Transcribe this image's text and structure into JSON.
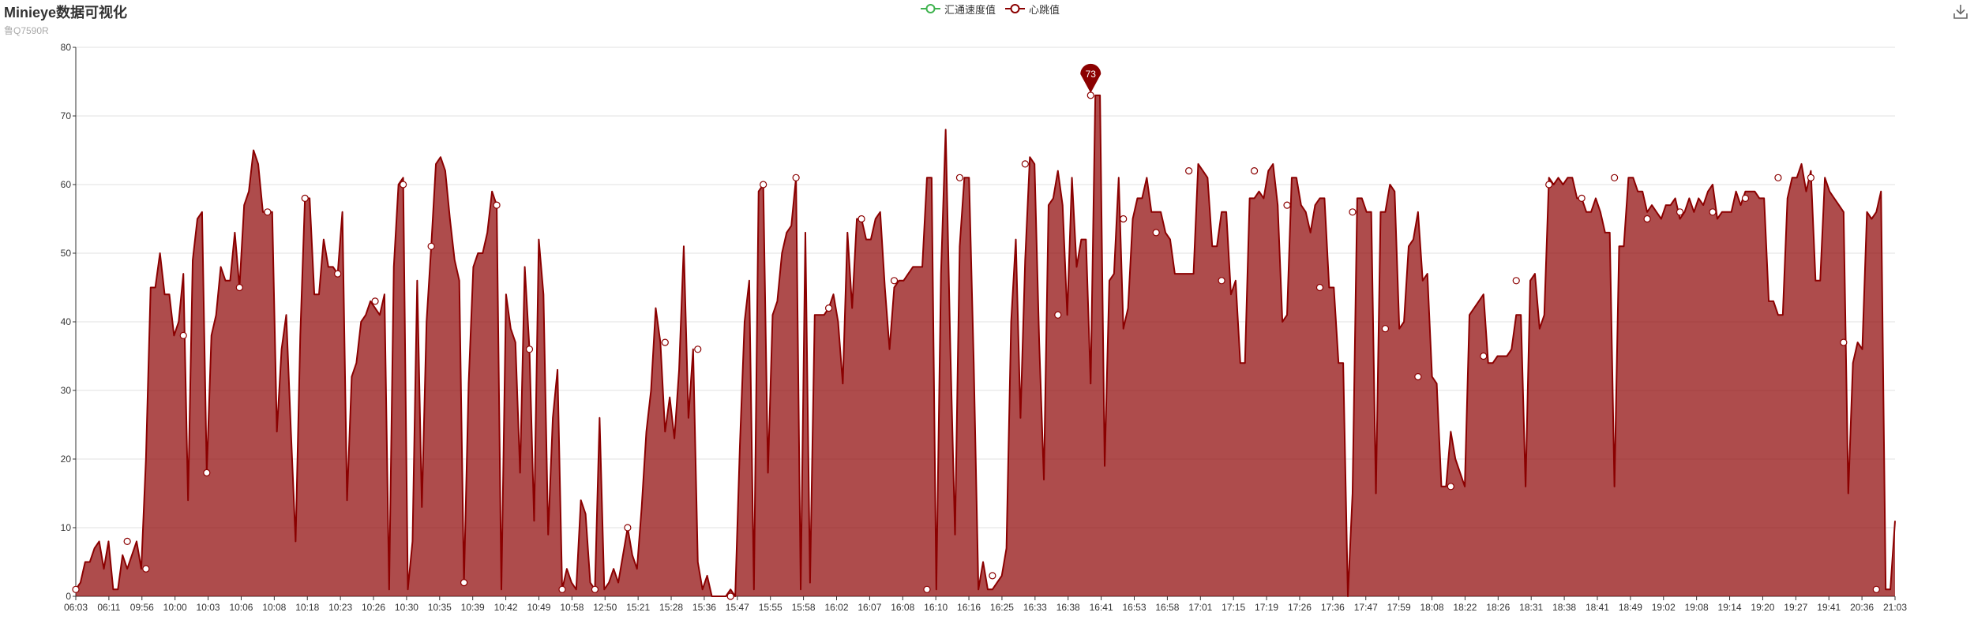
{
  "title": "Minieye数据可视化",
  "subtitle": "鲁Q7590R",
  "legend": {
    "series_a": "汇通速度值",
    "series_b": "心跳值"
  },
  "icons": {
    "download": "download-icon"
  },
  "colors": {
    "series_a": "#3fb34f",
    "series_b": "#8b0000",
    "area": "#8b0000"
  },
  "chart_data": {
    "type": "area",
    "title": "Minieye数据可视化",
    "subtitle": "鲁Q7590R",
    "xlabel": "",
    "ylabel": "",
    "ylim": [
      0,
      80
    ],
    "yticks": [
      0,
      10,
      20,
      30,
      40,
      50,
      60,
      70,
      80
    ],
    "grid": true,
    "legend_position": "top-center",
    "x_tick_labels": [
      "06:03",
      "06:11",
      "09:56",
      "10:00",
      "10:03",
      "10:06",
      "10:08",
      "10:18",
      "10:23",
      "10:26",
      "10:30",
      "10:35",
      "10:39",
      "10:42",
      "10:49",
      "10:58",
      "12:50",
      "15:21",
      "15:28",
      "15:36",
      "15:47",
      "15:55",
      "15:58",
      "16:02",
      "16:07",
      "16:08",
      "16:10",
      "16:16",
      "16:25",
      "16:33",
      "16:38",
      "16:41",
      "16:53",
      "16:58",
      "17:01",
      "17:15",
      "17:19",
      "17:26",
      "17:36",
      "17:47",
      "17:59",
      "18:08",
      "18:22",
      "18:26",
      "18:31",
      "18:38",
      "18:41",
      "18:49",
      "19:02",
      "19:08",
      "19:14",
      "19:20",
      "19:27",
      "19:41",
      "20:36",
      "21:03"
    ],
    "series": [
      {
        "name": "心跳值",
        "values": [
          1,
          2,
          5,
          5,
          7,
          8,
          4,
          8,
          1,
          1,
          6,
          4,
          6,
          8,
          4,
          20,
          45,
          45,
          50,
          44,
          44,
          38,
          40,
          47,
          14,
          49,
          55,
          56,
          18,
          38,
          41,
          48,
          46,
          46,
          53,
          45,
          57,
          59,
          65,
          63,
          56,
          56,
          56,
          24,
          36,
          41,
          24,
          8,
          38,
          58,
          58,
          44,
          44,
          52,
          48,
          48,
          47,
          56,
          14,
          32,
          34,
          40,
          41,
          43,
          42,
          41,
          44,
          1,
          48,
          60,
          61,
          1,
          8,
          46,
          13,
          40,
          51,
          63,
          64,
          62,
          55,
          49,
          46,
          2,
          31,
          48,
          50,
          50,
          53,
          59,
          57,
          1,
          44,
          39,
          37,
          18,
          48,
          36,
          11,
          52,
          44,
          9,
          26,
          33,
          1,
          4,
          2,
          1,
          14,
          12,
          2,
          1,
          26,
          1,
          2,
          4,
          2,
          6,
          10,
          6,
          4,
          13,
          24,
          30,
          42,
          37,
          24,
          29,
          23,
          33,
          51,
          26,
          36,
          5,
          1,
          3,
          0,
          0,
          0,
          0,
          1,
          0,
          22,
          40,
          46,
          1,
          59,
          60,
          18,
          41,
          43,
          50,
          53,
          54,
          61,
          1,
          53,
          2,
          41,
          41,
          41,
          42,
          44,
          40,
          31,
          53,
          42,
          55,
          55,
          52,
          52,
          55,
          56,
          45,
          36,
          45,
          46,
          46,
          47,
          48,
          48,
          48,
          61,
          61,
          1,
          47,
          68,
          36,
          9,
          51,
          61,
          61,
          34,
          1,
          5,
          1,
          1,
          2,
          3,
          7,
          40,
          52,
          26,
          49,
          64,
          63,
          37,
          17,
          57,
          58,
          62,
          57,
          41,
          61,
          48,
          52,
          52,
          31,
          73,
          73,
          19,
          46,
          47,
          61,
          39,
          42,
          55,
          58,
          58,
          61,
          56,
          56,
          56,
          53,
          52,
          47,
          47,
          47,
          47,
          47,
          63,
          62,
          61,
          51,
          51,
          56,
          56,
          44,
          46,
          34,
          34,
          58,
          58,
          59,
          58,
          62,
          63,
          57,
          40,
          41,
          61,
          61,
          57,
          56,
          53,
          57,
          58,
          58,
          45,
          45,
          34,
          34,
          0,
          15,
          58,
          58,
          56,
          56,
          15,
          56,
          56,
          60,
          59,
          39,
          40,
          51,
          52,
          56,
          46,
          47,
          32,
          31,
          16,
          16,
          24,
          20,
          18,
          16,
          41,
          42,
          43,
          44,
          34,
          34,
          35,
          35,
          35,
          36,
          41,
          41,
          16,
          46,
          47,
          39,
          41,
          61,
          60,
          61,
          60,
          61,
          61,
          58,
          58,
          56,
          56,
          58,
          56,
          53,
          53,
          16,
          51,
          51,
          61,
          61,
          59,
          59,
          56,
          57,
          56,
          55,
          57,
          57,
          58,
          55,
          56,
          58,
          56,
          58,
          57,
          59,
          60,
          55,
          56,
          56,
          56,
          59,
          57,
          59,
          59,
          59,
          58,
          58,
          43,
          43,
          41,
          41,
          58,
          61,
          61,
          63,
          59,
          62,
          46,
          46,
          61,
          59,
          58,
          57,
          56,
          15,
          34,
          37,
          36,
          56,
          55,
          56,
          59,
          1,
          1,
          11
        ]
      },
      {
        "name": "汇通速度值",
        "values": []
      }
    ],
    "markers": [
      [
        0,
        1
      ],
      [
        11,
        8
      ],
      [
        15,
        4
      ],
      [
        23,
        38
      ],
      [
        28,
        18
      ],
      [
        35,
        45
      ],
      [
        41,
        56
      ],
      [
        49,
        58
      ],
      [
        56,
        47
      ],
      [
        64,
        43
      ],
      [
        70,
        60
      ],
      [
        76,
        51
      ],
      [
        83,
        2
      ],
      [
        90,
        57
      ],
      [
        97,
        36
      ],
      [
        104,
        1
      ],
      [
        111,
        1
      ],
      [
        118,
        10
      ],
      [
        126,
        37
      ],
      [
        133,
        36
      ],
      [
        140,
        0
      ],
      [
        147,
        60
      ],
      [
        154,
        61
      ],
      [
        161,
        42
      ],
      [
        168,
        55
      ],
      [
        175,
        46
      ],
      [
        182,
        1
      ],
      [
        189,
        61
      ],
      [
        196,
        3
      ],
      [
        203,
        63
      ],
      [
        210,
        41
      ],
      [
        217,
        73
      ],
      [
        224,
        55
      ],
      [
        231,
        53
      ],
      [
        238,
        62
      ],
      [
        245,
        46
      ],
      [
        252,
        62
      ],
      [
        259,
        57
      ],
      [
        266,
        45
      ],
      [
        273,
        56
      ],
      [
        280,
        39
      ],
      [
        287,
        32
      ],
      [
        294,
        16
      ],
      [
        301,
        35
      ],
      [
        308,
        46
      ],
      [
        315,
        60
      ],
      [
        322,
        58
      ],
      [
        329,
        61
      ],
      [
        336,
        55
      ],
      [
        343,
        56
      ],
      [
        350,
        56
      ],
      [
        357,
        58
      ],
      [
        364,
        61
      ],
      [
        371,
        61
      ],
      [
        378,
        37
      ],
      [
        385,
        1
      ]
    ],
    "max_point": {
      "label": "73",
      "value": 73,
      "index": 217
    }
  }
}
